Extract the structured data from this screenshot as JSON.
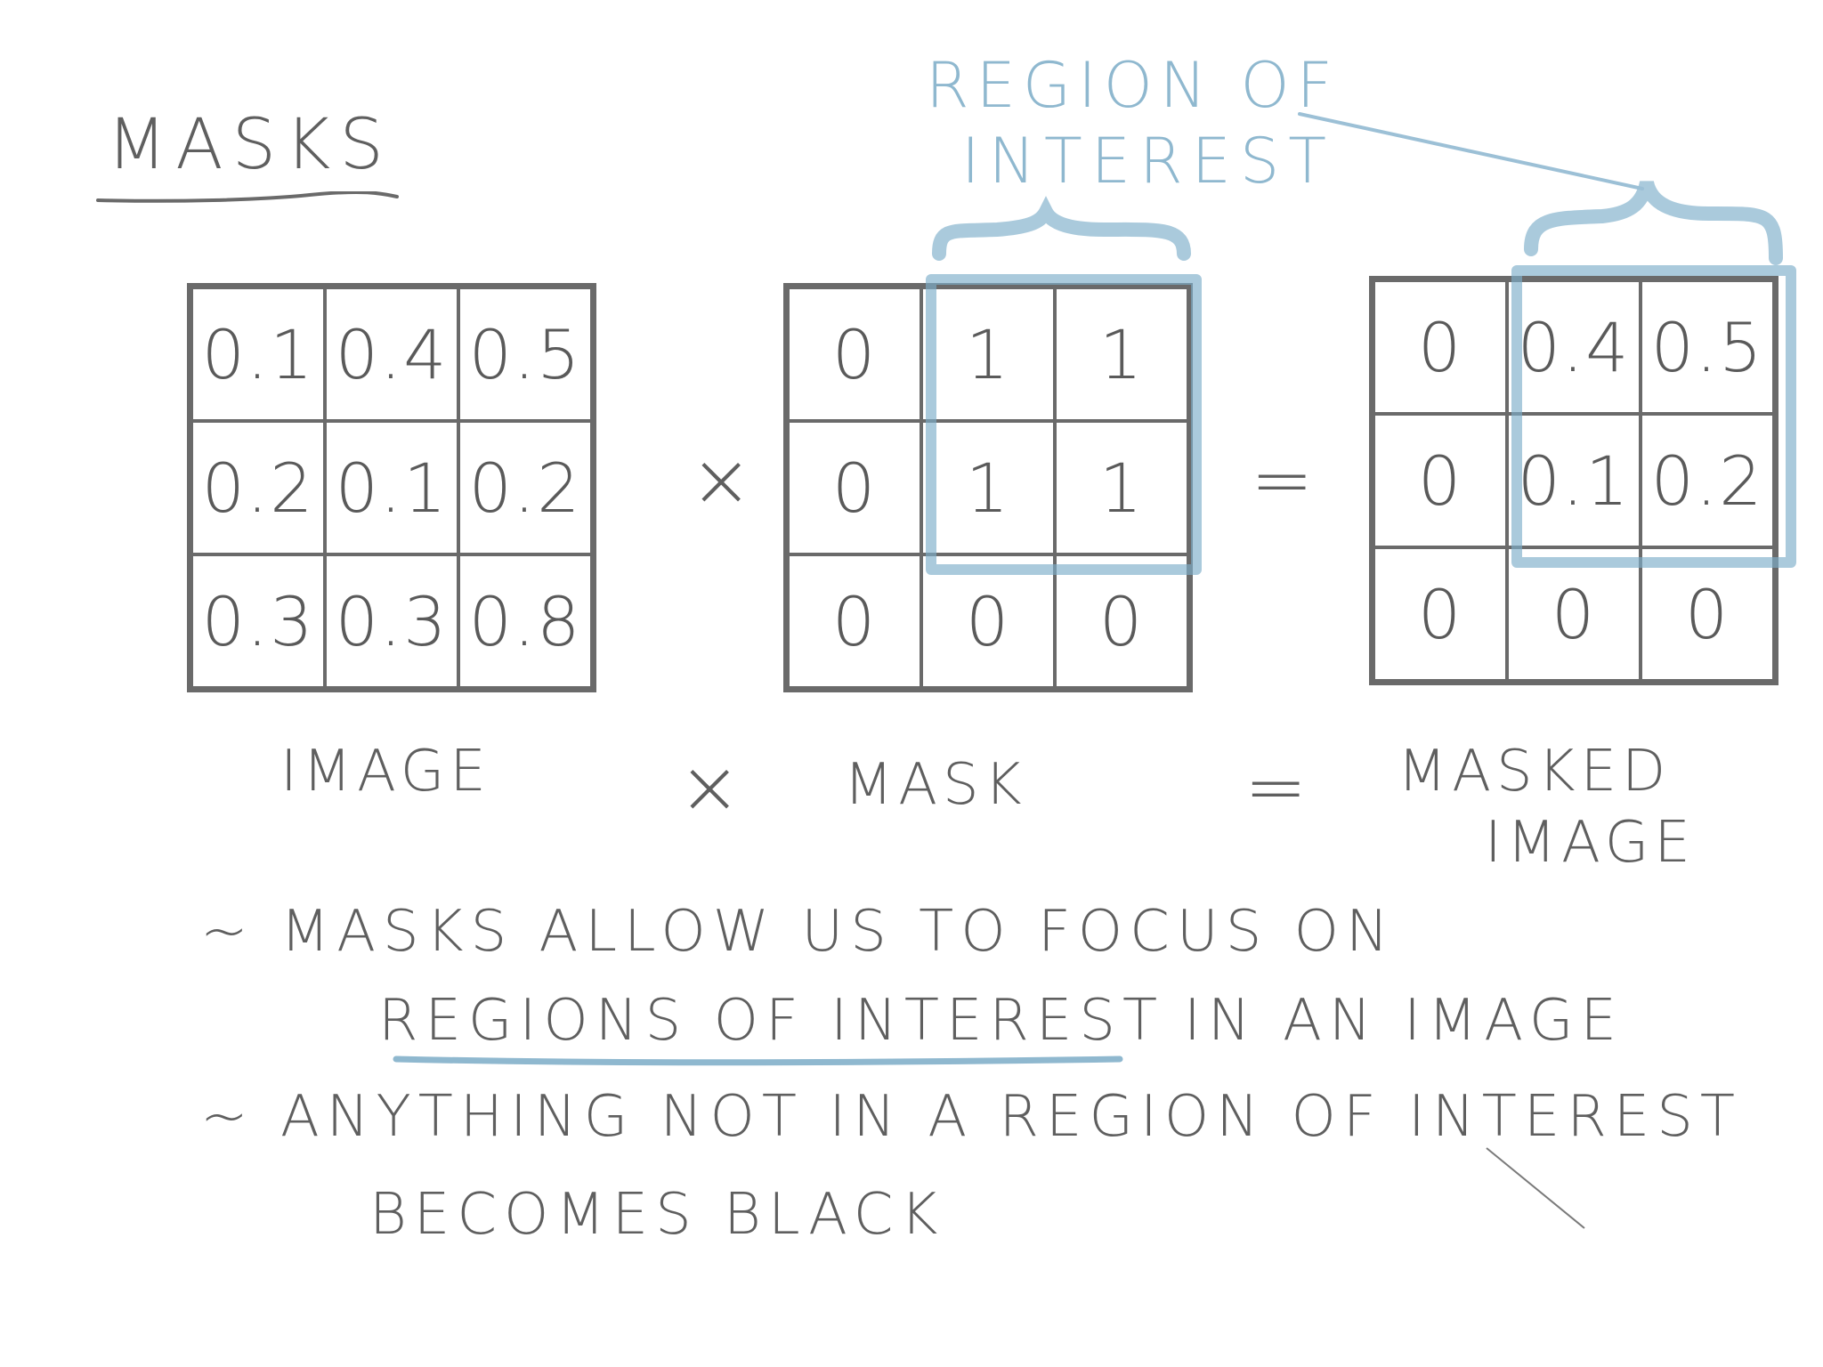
{
  "title": "MASKS",
  "roi_label_line1": "REGION OF",
  "roi_label_line2": "INTEREST",
  "image_grid": [
    "0.1",
    "0.4",
    "0.5",
    "0.2",
    "0.1",
    "0.2",
    "0.3",
    "0.3",
    "0.8"
  ],
  "mask_grid": [
    "0",
    "1",
    "1",
    "0",
    "1",
    "1",
    "0",
    "0",
    "0"
  ],
  "masked_grid": [
    "0",
    "0.4",
    "0.5",
    "0",
    "0.1",
    "0.2",
    "0",
    "0",
    "0"
  ],
  "operators": {
    "times": "×",
    "equals": "="
  },
  "labels": {
    "image": "IMAGE",
    "mask": "MASK",
    "masked_line1": "MASKED",
    "masked_line2": "IMAGE"
  },
  "notes": {
    "note1_line1": "~ MASKS ALLOW US TO FOCUS ON",
    "note1_line2_underlined": "REGIONS OF INTEREST",
    "note1_line2_rest": "IN AN IMAGE",
    "note2_line1": "~ ANYTHING NOT IN A REGION OF INTEREST",
    "note2_line2": "BECOMES BLACK"
  },
  "colors": {
    "ink": "#5f5f5f",
    "highlight": "#8fb8cf"
  }
}
